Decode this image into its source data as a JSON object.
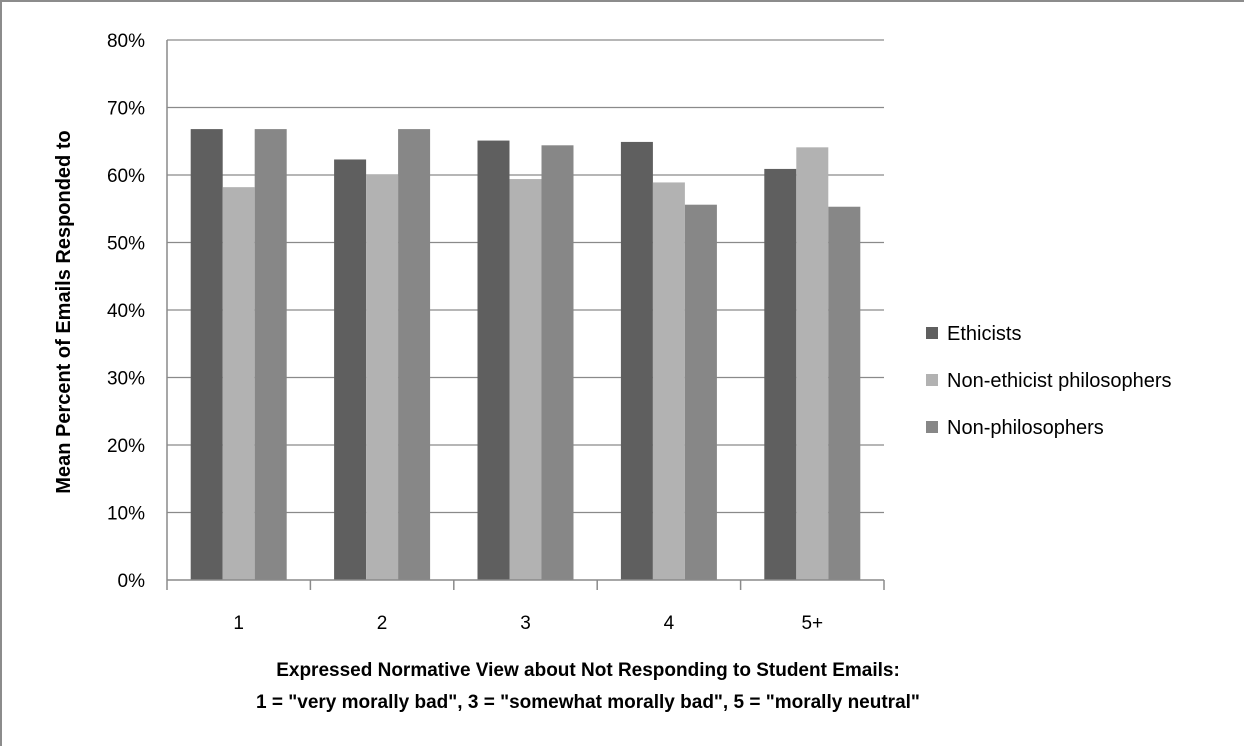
{
  "chart_data": {
    "type": "bar",
    "categories": [
      "1",
      "2",
      "3",
      "4",
      "5+"
    ],
    "series": [
      {
        "name": "Ethicists",
        "values": [
          0.668,
          0.623,
          0.651,
          0.649,
          0.609
        ],
        "color": "#5f5f5f"
      },
      {
        "name": "Non-ethicist philosophers",
        "values": [
          0.582,
          0.601,
          0.594,
          0.589,
          0.641
        ],
        "color": "#b2b2b2"
      },
      {
        "name": "Non-philosophers",
        "values": [
          0.668,
          0.668,
          0.644,
          0.556,
          0.553
        ],
        "color": "#878787"
      }
    ],
    "ylabel": "Mean Percent of Emails Responded to",
    "xlabel_lines": [
      "Expressed Normative View about Not Responding to Student Emails:",
      "1 = \"very morally bad\", 3 = \"somewhat morally bad\", 5 = \"morally neutral\""
    ],
    "ylim": [
      0,
      0.8
    ],
    "yticks": [
      "0%",
      "10%",
      "20%",
      "30%",
      "40%",
      "50%",
      "60%",
      "70%",
      "80%"
    ],
    "grid": true,
    "legend_position": "right"
  }
}
